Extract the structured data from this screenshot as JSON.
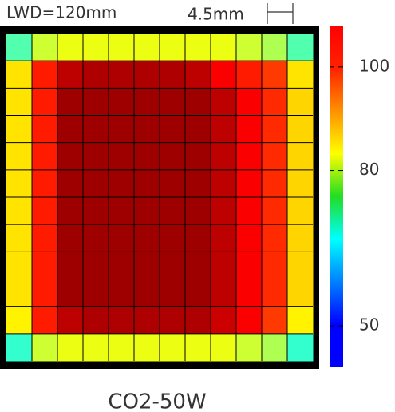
{
  "chart_data": {
    "type": "heatmap",
    "title": "LWD=120mm",
    "scale_label": "4.5mm",
    "caption": "CO2-50W",
    "colormap": "jet",
    "clim": [
      42,
      108
    ],
    "cticks": [
      50,
      80,
      100
    ],
    "z": [
      [
        72,
        80,
        82,
        82,
        82,
        82,
        82,
        82,
        82,
        80,
        78,
        72
      ],
      [
        85,
        98,
        104,
        105,
        105,
        105,
        105,
        104,
        100,
        98,
        96,
        85
      ],
      [
        85,
        98,
        106,
        106,
        106,
        106,
        106,
        106,
        104,
        100,
        97,
        86
      ],
      [
        85,
        98,
        106,
        106,
        106,
        106,
        106,
        106,
        104,
        100,
        97,
        86
      ],
      [
        85,
        98,
        106,
        106,
        106,
        106,
        106,
        106,
        104,
        100,
        97,
        86
      ],
      [
        85,
        98,
        106,
        106,
        106,
        106,
        106,
        106,
        104,
        100,
        97,
        86
      ],
      [
        85,
        98,
        106,
        106,
        106,
        106,
        106,
        106,
        104,
        100,
        97,
        86
      ],
      [
        85,
        98,
        106,
        106,
        106,
        106,
        106,
        106,
        104,
        100,
        97,
        86
      ],
      [
        85,
        98,
        106,
        106,
        106,
        106,
        106,
        106,
        104,
        100,
        97,
        86
      ],
      [
        85,
        98,
        106,
        106,
        106,
        106,
        106,
        106,
        104,
        100,
        97,
        86
      ],
      [
        84,
        98,
        104,
        105,
        105,
        105,
        105,
        105,
        103,
        100,
        96,
        84
      ],
      [
        70,
        80,
        82,
        82,
        82,
        82,
        82,
        82,
        82,
        80,
        78,
        70
      ]
    ]
  }
}
